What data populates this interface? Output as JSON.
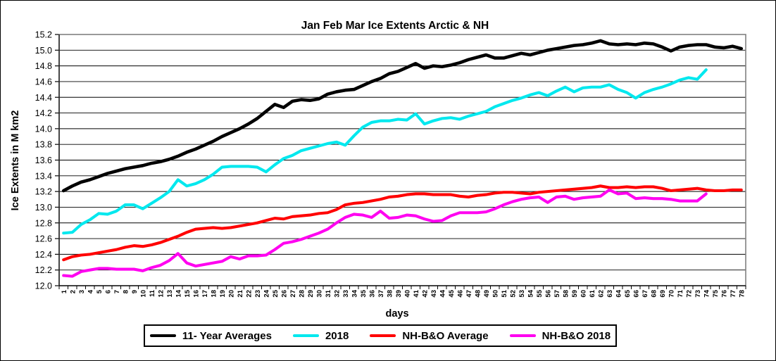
{
  "title": "Jan Feb Mar Ice Extents Arctic & NH",
  "x_axis": {
    "label": "days",
    "tick_labels": [
      "1",
      "2",
      "3",
      "4",
      "5",
      "6",
      "7",
      "8",
      "9",
      "10",
      "11",
      "12",
      "13",
      "14",
      "15",
      "16",
      "17",
      "18",
      "19",
      "20",
      "21",
      "22",
      "23",
      "24",
      "25",
      "26",
      "27",
      "28",
      "29",
      "30",
      "31",
      "32",
      "33",
      "34",
      "35",
      "36",
      "37",
      "38",
      "39",
      "40",
      "41",
      "42",
      "43",
      "44",
      "45",
      "46",
      "47",
      "48",
      "49",
      "50",
      "51",
      "52",
      "53",
      "54",
      "55",
      "56",
      "57",
      "58",
      "59",
      "60",
      "61",
      "62",
      "63",
      "64",
      "65",
      "66",
      "67",
      "68",
      "69",
      "70",
      "71",
      "72",
      "73",
      "74",
      "75",
      "76",
      "77",
      "78"
    ]
  },
  "y_axis": {
    "label": "Ice Extents in M km2",
    "min": 12.0,
    "max": 15.2,
    "step": 0.2,
    "tick_labels": [
      "12.0",
      "12.2",
      "12.4",
      "12.6",
      "12.8",
      "13.0",
      "13.2",
      "13.4",
      "13.6",
      "13.8",
      "14.0",
      "14.2",
      "14.4",
      "14.6",
      "14.8",
      "15.0",
      "15.2"
    ]
  },
  "chart_data": {
    "type": "line",
    "title": "Jan Feb Mar Ice Extents Arctic & NH",
    "xlabel": "days",
    "ylabel": "Ice Extents in M km2",
    "x_range": [
      1,
      78
    ],
    "ylim": [
      12.0,
      15.2
    ],
    "grid": true,
    "legend_position": "bottom",
    "series": [
      {
        "name": "11- Year Averages",
        "color": "#000000",
        "start_day": 1,
        "values": [
          13.21,
          13.27,
          13.32,
          13.35,
          13.39,
          13.43,
          13.46,
          13.49,
          13.51,
          13.53,
          13.56,
          13.58,
          13.61,
          13.65,
          13.7,
          13.74,
          13.79,
          13.84,
          13.9,
          13.95,
          14.0,
          14.06,
          14.13,
          14.22,
          14.31,
          14.27,
          14.35,
          14.37,
          14.36,
          14.38,
          14.44,
          14.47,
          14.49,
          14.5,
          14.55,
          14.6,
          14.64,
          14.7,
          14.73,
          14.78,
          14.83,
          14.77,
          14.8,
          14.79,
          14.81,
          14.84,
          14.88,
          14.91,
          14.94,
          14.9,
          14.9,
          14.93,
          14.96,
          14.94,
          14.97,
          15.0,
          15.02,
          15.04,
          15.06,
          15.07,
          15.09,
          15.12,
          15.08,
          15.07,
          15.08,
          15.07,
          15.09,
          15.08,
          15.04,
          14.99,
          15.04,
          15.06,
          15.07,
          15.07,
          15.04,
          15.03,
          15.05,
          15.02
        ]
      },
      {
        "name": "2018",
        "color": "#00E8EE",
        "start_day": 1,
        "values": [
          12.67,
          12.68,
          12.78,
          12.84,
          12.92,
          12.91,
          12.95,
          13.03,
          13.03,
          12.98,
          13.05,
          13.12,
          13.2,
          13.35,
          13.27,
          13.3,
          13.35,
          13.42,
          13.51,
          13.52,
          13.52,
          13.52,
          13.51,
          13.45,
          13.54,
          13.62,
          13.66,
          13.72,
          13.75,
          13.78,
          13.81,
          13.83,
          13.79,
          13.91,
          14.02,
          14.08,
          14.1,
          14.1,
          14.12,
          14.11,
          14.19,
          14.06,
          14.1,
          14.13,
          14.14,
          14.12,
          14.16,
          14.19,
          14.22,
          14.28,
          14.32,
          14.36,
          14.39,
          14.43,
          14.46,
          14.42,
          14.48,
          14.53,
          14.47,
          14.52,
          14.53,
          14.53,
          14.56,
          14.5,
          14.46,
          14.39,
          14.46,
          14.5,
          14.53,
          14.57,
          14.62,
          14.65,
          14.63,
          14.75
        ]
      },
      {
        "name": "NH-B&O Average",
        "color": "#FF0000",
        "start_day": 1,
        "values": [
          12.33,
          12.37,
          12.39,
          12.4,
          12.42,
          12.44,
          12.46,
          12.49,
          12.51,
          12.5,
          12.52,
          12.55,
          12.59,
          12.63,
          12.68,
          12.72,
          12.73,
          12.74,
          12.73,
          12.74,
          12.76,
          12.78,
          12.8,
          12.83,
          12.86,
          12.85,
          12.88,
          12.89,
          12.9,
          12.92,
          12.93,
          12.97,
          13.03,
          13.05,
          13.06,
          13.08,
          13.1,
          13.13,
          13.14,
          13.16,
          13.17,
          13.17,
          13.16,
          13.16,
          13.16,
          13.14,
          13.13,
          13.15,
          13.16,
          13.18,
          13.19,
          13.19,
          13.18,
          13.17,
          13.19,
          13.2,
          13.21,
          13.22,
          13.23,
          13.24,
          13.25,
          13.27,
          13.25,
          13.25,
          13.26,
          13.25,
          13.26,
          13.26,
          13.24,
          13.21,
          13.22,
          13.23,
          13.24,
          13.22,
          13.21,
          13.21,
          13.22,
          13.22
        ]
      },
      {
        "name": "NH-B&O 2018",
        "color": "#FF00F0",
        "start_day": 1,
        "values": [
          12.13,
          12.12,
          12.18,
          12.2,
          12.22,
          12.22,
          12.21,
          12.21,
          12.21,
          12.19,
          12.23,
          12.26,
          12.32,
          12.41,
          12.29,
          12.25,
          12.27,
          12.29,
          12.31,
          12.37,
          12.34,
          12.38,
          12.38,
          12.39,
          12.46,
          12.54,
          12.56,
          12.59,
          12.63,
          12.67,
          12.72,
          12.8,
          12.87,
          12.91,
          12.9,
          12.87,
          12.95,
          12.86,
          12.87,
          12.9,
          12.89,
          12.85,
          12.82,
          12.83,
          12.89,
          12.93,
          12.93,
          12.93,
          12.94,
          12.98,
          13.03,
          13.07,
          13.1,
          13.12,
          13.13,
          13.06,
          13.13,
          13.14,
          13.1,
          13.12,
          13.13,
          13.14,
          13.22,
          13.17,
          13.18,
          13.11,
          13.12,
          13.11,
          13.11,
          13.1,
          13.08,
          13.08,
          13.08,
          13.17
        ]
      }
    ]
  }
}
